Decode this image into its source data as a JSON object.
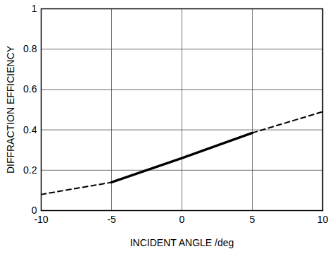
{
  "chart_data": {
    "type": "line",
    "x_label": "INCIDENT ANGLE /deg",
    "y_label": "DIFFRACTION EFFICIENCY",
    "x": [
      -10,
      -5,
      0,
      5,
      10
    ],
    "series": [
      {
        "color": "#000000",
        "line_style": "solid",
        "values": [
          null,
          0.14,
          0.26,
          0.385,
          null
        ]
      },
      {
        "color": "#000000",
        "line_style": "dashed",
        "values": [
          0.08,
          0.14,
          null,
          0.385,
          0.49
        ]
      }
    ],
    "xlim": [
      -10,
      10
    ],
    "xticks": [
      -10,
      -5,
      0,
      5,
      10
    ],
    "ylim": [
      0,
      1
    ],
    "yticks": [
      0,
      0.2,
      0.4,
      0.6,
      0.8,
      1
    ],
    "grid": true
  }
}
